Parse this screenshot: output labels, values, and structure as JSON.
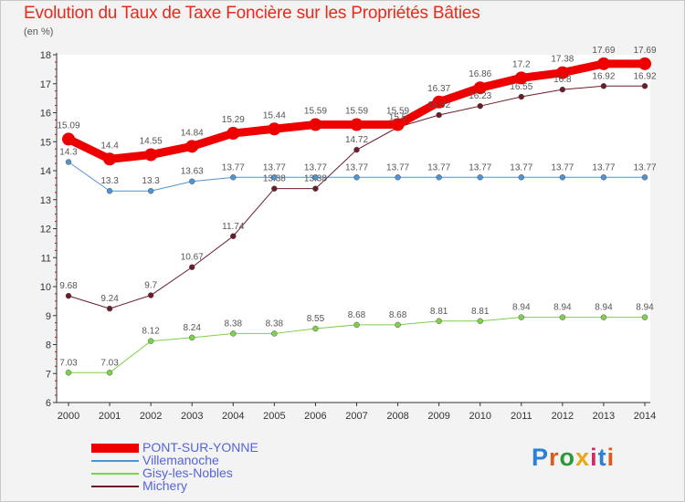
{
  "chart_data": {
    "type": "line",
    "title": "Evolution du Taux de Taxe Foncière sur les Propriétés Bâties",
    "unit_label": "(en %)",
    "x": [
      2000,
      2001,
      2002,
      2003,
      2004,
      2005,
      2006,
      2007,
      2008,
      2009,
      2010,
      2011,
      2012,
      2013,
      2014
    ],
    "ylim": [
      6,
      18
    ],
    "yticks": [
      6,
      7,
      8,
      9,
      10,
      11,
      12,
      13,
      14,
      15,
      16,
      17,
      18
    ],
    "grid": false,
    "legend_position": "bottom-left",
    "series": [
      {
        "name": "PONT-SUR-YONNE",
        "color": "#ee0000",
        "values": [
          15.09,
          14.4,
          14.55,
          14.84,
          15.29,
          15.44,
          15.59,
          15.59,
          15.59,
          16.37,
          16.86,
          17.2,
          17.38,
          17.69,
          17.69
        ]
      },
      {
        "name": "Villemanoche",
        "color": "#4f93d0",
        "values": [
          14.3,
          13.3,
          13.3,
          13.63,
          13.77,
          13.77,
          13.77,
          13.77,
          13.77,
          13.77,
          13.77,
          13.77,
          13.77,
          13.77,
          13.77
        ]
      },
      {
        "name": "Gisy-les-Nobles",
        "color": "#7fd04a",
        "values": [
          7.03,
          7.03,
          8.12,
          8.24,
          8.38,
          8.38,
          8.55,
          8.68,
          8.68,
          8.81,
          8.81,
          8.94,
          8.94,
          8.94,
          8.94
        ]
      },
      {
        "name": "Michery",
        "color": "#6b1c28",
        "values": [
          9.68,
          9.24,
          9.7,
          10.67,
          11.74,
          13.38,
          13.38,
          14.72,
          15.5,
          15.92,
          16.23,
          16.55,
          16.8,
          16.92,
          16.92
        ]
      }
    ],
    "data_labels": {
      "PONT-SUR-YONNE": [
        "15.09",
        "14.4",
        "14.55",
        "14.84",
        "15.29",
        "15.44",
        "15.59",
        "15.59",
        "15.59",
        "16.37",
        "16.86",
        "17.2",
        "17.38",
        "17.69",
        "17.69"
      ],
      "Villemanoche": [
        "14.3",
        "13.3",
        "13.3",
        "13.63",
        "13.77",
        "13.77",
        "13.77",
        "13.77",
        "13.77",
        "13.77",
        "13.77",
        "13.77",
        "13.77",
        "13.77",
        "13.77"
      ],
      "Gisy-les-Nobles": [
        "7.03",
        "7.03",
        "8.12",
        "8.24",
        "8.38",
        "8.38",
        "8.55",
        "8.68",
        "8.68",
        "8.81",
        "8.81",
        "8.94",
        "8.94",
        "8.94",
        "8.94"
      ],
      "Michery": [
        "9.68",
        "9.24",
        "9.7",
        "10.67",
        "11.74",
        "13.38",
        "13.38",
        "14.72",
        "15.5",
        "15.92",
        "16.23",
        "16.55",
        "16.8",
        "16.92",
        "16.92"
      ]
    }
  },
  "logo": {
    "text": "Proxiti"
  }
}
